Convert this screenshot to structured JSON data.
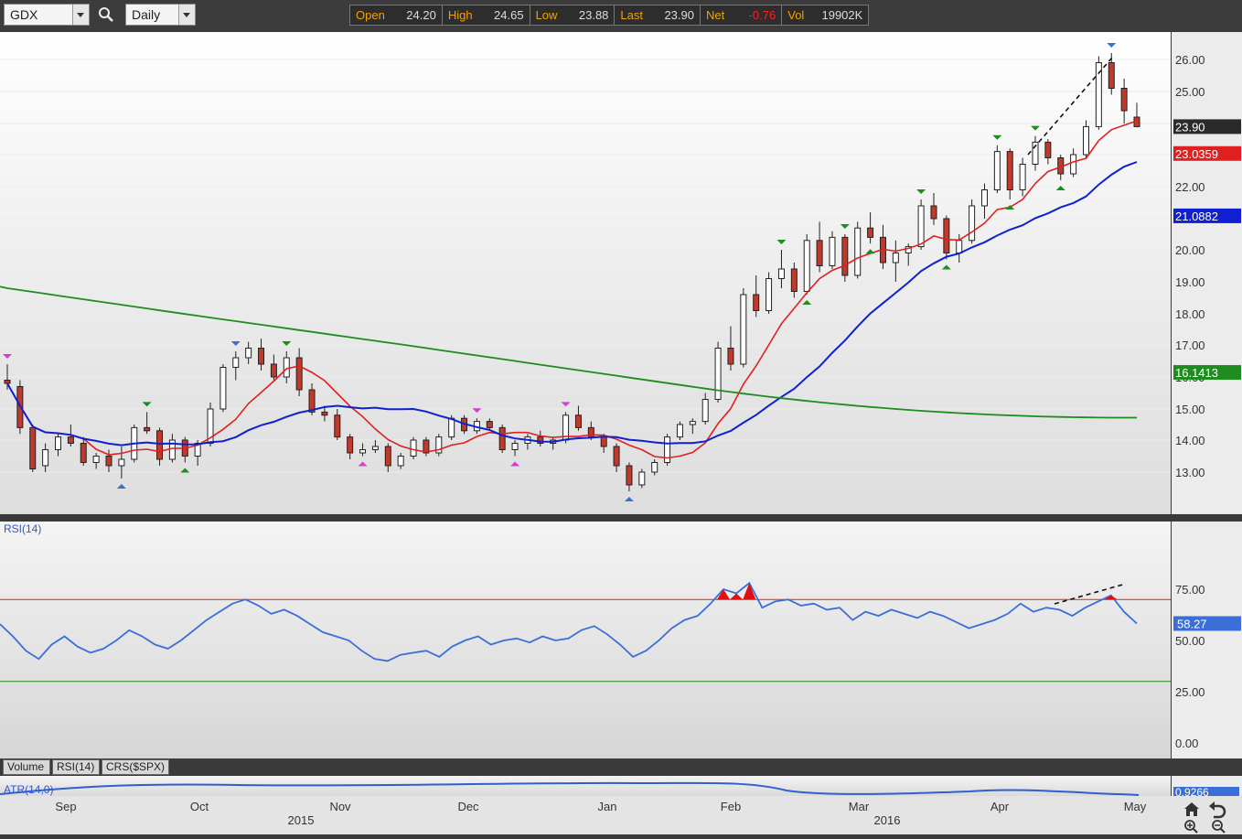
{
  "toolbar": {
    "symbol": "GDX",
    "period": "Daily",
    "quote": {
      "open_label": "Open",
      "open": "24.20",
      "high_label": "High",
      "high": "24.65",
      "low_label": "Low",
      "low": "23.88",
      "last_label": "Last",
      "last": "23.90",
      "net_label": "Net",
      "net": "-0.76",
      "vol_label": "Vol",
      "vol": "19902K"
    }
  },
  "colors": {
    "up_fill": "#ffffff",
    "down_fill": "#c0392b",
    "sma20": "#e02020",
    "sma50": "#1020d0",
    "sma200": "#1e8c1e",
    "last_badge": "#2a2a2a",
    "rsi_line": "#3a6fd8",
    "rsi_upper": "#e02020",
    "rsi_lower": "#1e8c1e"
  },
  "chart_data": [
    {
      "type": "candlestick",
      "title": "GDX",
      "ylim": [
        12.0,
        26.8
      ],
      "y_ticks": [
        "13.00",
        "14.00",
        "15.00",
        "16.00",
        "17.00",
        "18.00",
        "19.00",
        "20.00",
        "22.00",
        "23.00",
        "24.00",
        "25.00",
        "26.00"
      ],
      "y_tick_values": [
        13,
        14,
        15,
        16,
        17,
        18,
        19,
        20,
        21,
        22,
        23,
        24,
        25,
        26
      ],
      "y_tick_labels_note": "labels printed as on chart",
      "ohlc_sample": [
        [
          15.9,
          16.4,
          15.6,
          15.8
        ],
        [
          15.7,
          15.9,
          14.2,
          14.4
        ],
        [
          14.4,
          14.5,
          13.0,
          13.1
        ],
        [
          13.2,
          13.9,
          13.0,
          13.7
        ],
        [
          13.7,
          14.2,
          13.5,
          14.1
        ],
        [
          14.1,
          14.5,
          13.8,
          13.9
        ],
        [
          13.9,
          14.1,
          13.2,
          13.3
        ],
        [
          13.3,
          13.6,
          13.1,
          13.5
        ],
        [
          13.5,
          13.7,
          13.0,
          13.2
        ],
        [
          13.2,
          13.8,
          12.8,
          13.4
        ],
        [
          13.4,
          14.5,
          13.3,
          14.4
        ],
        [
          14.4,
          14.9,
          14.2,
          14.3
        ],
        [
          14.3,
          14.4,
          13.2,
          13.4
        ],
        [
          13.4,
          14.2,
          13.3,
          14.0
        ],
        [
          14.0,
          14.1,
          13.3,
          13.5
        ],
        [
          13.5,
          14.0,
          13.2,
          13.9
        ],
        [
          13.9,
          15.2,
          13.8,
          15.0
        ],
        [
          15.0,
          16.4,
          14.9,
          16.3
        ],
        [
          16.3,
          16.8,
          15.9,
          16.6
        ],
        [
          16.6,
          17.1,
          16.4,
          16.9
        ],
        [
          16.9,
          17.2,
          16.2,
          16.4
        ],
        [
          16.4,
          16.7,
          15.9,
          16.0
        ],
        [
          16.0,
          16.8,
          15.8,
          16.6
        ],
        [
          16.6,
          16.9,
          15.4,
          15.6
        ],
        [
          15.6,
          15.8,
          14.8,
          14.9
        ],
        [
          14.9,
          15.1,
          14.6,
          14.8
        ],
        [
          14.8,
          15.0,
          14.0,
          14.1
        ],
        [
          14.1,
          14.2,
          13.4,
          13.6
        ],
        [
          13.6,
          13.9,
          13.5,
          13.7
        ],
        [
          13.7,
          14.0,
          13.6,
          13.8
        ],
        [
          13.8,
          13.9,
          13.0,
          13.2
        ],
        [
          13.2,
          13.6,
          13.1,
          13.5
        ],
        [
          13.5,
          14.1,
          13.4,
          14.0
        ],
        [
          14.0,
          14.1,
          13.5,
          13.6
        ],
        [
          13.6,
          14.2,
          13.5,
          14.1
        ],
        [
          14.1,
          14.8,
          14.0,
          14.7
        ],
        [
          14.7,
          14.8,
          14.2,
          14.3
        ],
        [
          14.3,
          14.7,
          14.2,
          14.6
        ],
        [
          14.6,
          14.7,
          14.3,
          14.4
        ],
        [
          14.4,
          14.5,
          13.6,
          13.7
        ],
        [
          13.7,
          14.0,
          13.5,
          13.9
        ],
        [
          13.9,
          14.2,
          13.7,
          14.1
        ],
        [
          14.1,
          14.3,
          13.8,
          13.9
        ],
        [
          13.9,
          14.1,
          13.7,
          14.0
        ],
        [
          14.0,
          14.9,
          13.9,
          14.8
        ],
        [
          14.8,
          15.1,
          14.3,
          14.4
        ],
        [
          14.4,
          14.6,
          14.0,
          14.1
        ],
        [
          14.1,
          14.2,
          13.6,
          13.8
        ],
        [
          13.8,
          13.9,
          13.0,
          13.2
        ],
        [
          13.2,
          13.3,
          12.4,
          12.6
        ],
        [
          12.6,
          13.1,
          12.5,
          13.0
        ],
        [
          13.0,
          13.4,
          12.9,
          13.3
        ],
        [
          13.3,
          14.2,
          13.2,
          14.1
        ],
        [
          14.1,
          14.6,
          14.0,
          14.5
        ],
        [
          14.5,
          14.7,
          14.2,
          14.6
        ],
        [
          14.6,
          15.5,
          14.5,
          15.3
        ],
        [
          15.3,
          17.1,
          15.2,
          16.9
        ],
        [
          16.9,
          17.6,
          16.2,
          16.4
        ],
        [
          16.4,
          18.8,
          16.3,
          18.6
        ],
        [
          18.6,
          19.2,
          17.9,
          18.1
        ],
        [
          18.1,
          19.3,
          18.0,
          19.1
        ],
        [
          19.1,
          20.0,
          18.8,
          19.4
        ],
        [
          19.4,
          19.6,
          18.5,
          18.7
        ],
        [
          18.7,
          20.5,
          18.6,
          20.3
        ],
        [
          20.3,
          20.9,
          19.3,
          19.5
        ],
        [
          19.5,
          20.6,
          19.4,
          20.4
        ],
        [
          20.4,
          20.5,
          19.0,
          19.2
        ],
        [
          19.2,
          20.9,
          19.1,
          20.7
        ],
        [
          20.7,
          21.2,
          20.2,
          20.4
        ],
        [
          20.4,
          20.8,
          19.4,
          19.6
        ],
        [
          19.6,
          20.3,
          19.0,
          19.9
        ],
        [
          19.9,
          20.2,
          19.5,
          20.1
        ],
        [
          20.1,
          21.6,
          20.0,
          21.4
        ],
        [
          21.4,
          21.8,
          20.8,
          21.0
        ],
        [
          21.0,
          21.1,
          19.7,
          19.9
        ],
        [
          19.9,
          20.5,
          19.6,
          20.3
        ],
        [
          20.3,
          21.6,
          20.2,
          21.4
        ],
        [
          21.4,
          22.1,
          21.0,
          21.9
        ],
        [
          21.9,
          23.3,
          21.8,
          23.1
        ],
        [
          23.1,
          23.2,
          21.6,
          21.9
        ],
        [
          21.9,
          22.9,
          21.7,
          22.7
        ],
        [
          22.7,
          23.6,
          22.5,
          23.4
        ],
        [
          23.4,
          23.5,
          22.7,
          22.9
        ],
        [
          22.9,
          23.0,
          22.2,
          22.4
        ],
        [
          22.4,
          23.2,
          22.3,
          23.0
        ],
        [
          23.0,
          24.1,
          22.9,
          23.9
        ],
        [
          23.9,
          26.1,
          23.8,
          25.9
        ],
        [
          25.9,
          26.2,
          24.9,
          25.1
        ],
        [
          25.1,
          25.4,
          24.0,
          24.4
        ],
        [
          24.2,
          24.65,
          23.88,
          23.9
        ]
      ],
      "overlays": [
        {
          "name": "",
          "color": "#e02020",
          "last": "23.0359"
        },
        {
          "name": "",
          "color": "#1020d0",
          "last": "21.0882"
        },
        {
          "name": "",
          "color": "#1e8c1e",
          "last": "16.1413"
        }
      ],
      "last_price": "23.90",
      "value_badges": [
        {
          "text": "23.90",
          "color": "#2a2a2a",
          "value": 23.9
        },
        {
          "text": "23.0359",
          "color": "#e02020",
          "value": 23.0359
        },
        {
          "text": "21.0882",
          "color": "#1020d0",
          "value": 21.0882
        },
        {
          "text": "16.1413",
          "color": "#1e8c1e",
          "value": 16.1413
        }
      ]
    },
    {
      "type": "line",
      "title": "RSI(14)",
      "ylim": [
        -5,
        100
      ],
      "y_ticks": [
        "75.00",
        "50.00",
        "25.00",
        "0.00"
      ],
      "y_tick_values": [
        75,
        50,
        25,
        0
      ],
      "upper_level": 70,
      "lower_level": 30,
      "values": [
        58,
        52,
        45,
        41,
        48,
        52,
        47,
        44,
        46,
        50,
        55,
        52,
        48,
        46,
        50,
        55,
        60,
        64,
        68,
        70,
        67,
        63,
        65,
        62,
        58,
        54,
        52,
        50,
        45,
        41,
        40,
        43,
        44,
        45,
        42,
        47,
        50,
        52,
        48,
        50,
        51,
        49,
        52,
        50,
        51,
        55,
        57,
        53,
        48,
        42,
        45,
        50,
        56,
        60,
        62,
        68,
        75,
        73,
        78,
        66,
        69,
        70,
        67,
        68,
        65,
        66,
        60,
        64,
        62,
        65,
        63,
        61,
        64,
        62,
        59,
        56,
        58,
        60,
        63,
        68,
        64,
        66,
        65,
        62,
        66,
        69,
        72,
        64,
        58.27
      ],
      "last": "58.27"
    },
    {
      "type": "line",
      "title": "ATR(14,0)",
      "y_ticks": [
        "0.9266"
      ],
      "last": "0.9266"
    }
  ],
  "x_axis": {
    "months": [
      "Sep",
      "Oct",
      "Nov",
      "Dec",
      "Jan",
      "Feb",
      "Mar",
      "Apr",
      "May"
    ],
    "years": [
      "2015",
      "2016"
    ]
  },
  "indicator_tabs": [
    "Volume",
    "RSI(14)",
    "CRS($SPX)"
  ],
  "panel_labels": {
    "rsi": "RSI(14)",
    "atr": "ATR(14,0)"
  }
}
